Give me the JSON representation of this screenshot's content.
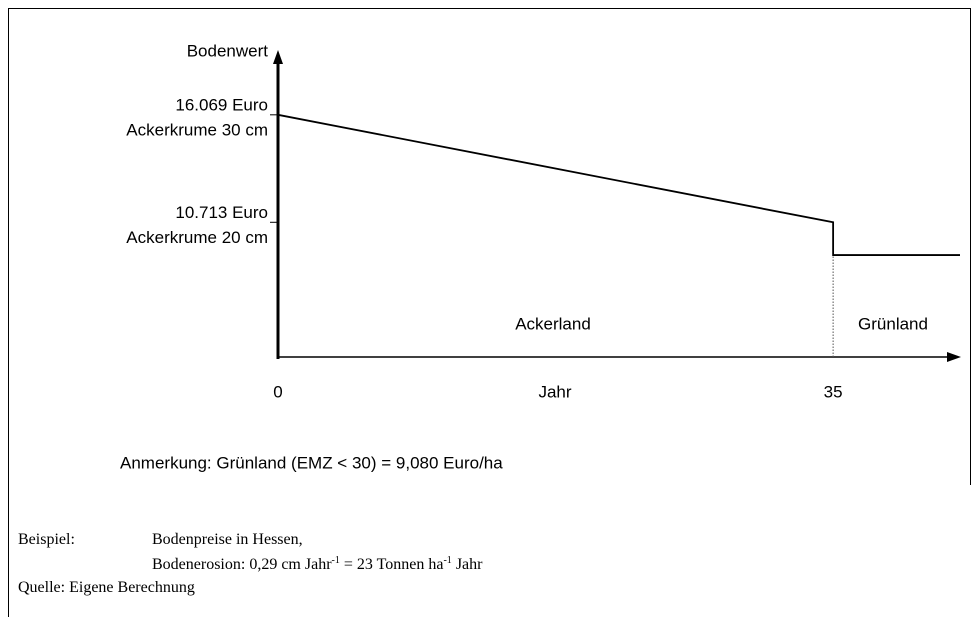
{
  "chart_data": {
    "type": "line",
    "ylabel": "Bodenwert",
    "xlabel": "Jahr",
    "x": [
      0,
      35,
      35,
      43
    ],
    "series": [
      {
        "color": "#000000",
        "values": [
          16069,
          10713,
          9080,
          9080
        ]
      }
    ],
    "xlim": [
      0,
      43
    ],
    "xticks": [
      0,
      35
    ],
    "ylim": [
      4000,
      19000
    ],
    "yticks": [
      {
        "value": 16069,
        "label": "16.069 Euro"
      },
      {
        "value": 10713,
        "label": "10.713 Euro"
      }
    ],
    "ytick_notes": [
      "Ackerkrume 30 cm",
      "Ackerkrume 20 cm"
    ],
    "annotations": [
      "Ackerland",
      "Grünland"
    ],
    "note": "Anmerkung: Grünland (EMZ < 30) = 9,080 Euro/ha",
    "footer": {
      "example_label": "Beispiel:",
      "example_line1": "Bodenpreise in Hessen,",
      "example_line2": [
        "Bodenerosion: 0,29 cm Jahr",
        "-1",
        " = 23 Tonnen ha",
        "-1",
        " Jahr"
      ],
      "source": "Quelle: Eigene Berechnung"
    }
  }
}
